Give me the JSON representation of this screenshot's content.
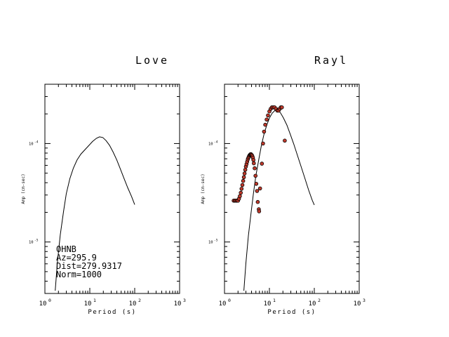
{
  "chart_data": [
    {
      "type": "line",
      "title": "Love",
      "xlabel": "Period (s)",
      "ylabel": "Amp (cm-sec)",
      "x_scale": "log",
      "y_scale": "log",
      "xlim": [
        1,
        1000
      ],
      "ylim": [
        3e-06,
        0.0004
      ],
      "x_ticks": [
        1,
        10,
        100,
        1000
      ],
      "x_tick_labels": [
        [
          "10",
          "0"
        ],
        [
          "10",
          "1"
        ],
        [
          "10",
          "2"
        ],
        [
          "10",
          "3"
        ]
      ],
      "y_ticks": [
        0.0001,
        1e-05
      ],
      "y_tick_labels": [
        [
          "10",
          "-4"
        ],
        [
          "10",
          "-5"
        ]
      ],
      "grid": false,
      "annotation": [
        "OHNB",
        "Az=295.9",
        "Dist=279.9317",
        "Norm=1000"
      ],
      "series": [
        {
          "kind": "line",
          "x": [
            1.7,
            1.9,
            2.2,
            2.6,
            3.0,
            3.6,
            4.3,
            5.2,
            6.3,
            7.7,
            9.4,
            11.5,
            14.0,
            16.5,
            19.5,
            23.0,
            27.5,
            33.0,
            40.0,
            48.0,
            58.0,
            70.0,
            85.0,
            100.0
          ],
          "y": [
            3.2e-06,
            6.2e-06,
            1.18e-05,
            2.05e-05,
            3.1e-05,
            4.4e-05,
            5.6e-05,
            6.8e-05,
            7.8e-05,
            8.6e-05,
            9.5e-05,
            0.000105,
            0.000113,
            0.000117,
            0.000115,
            0.000107,
            9.6e-05,
            8.2e-05,
            6.8e-05,
            5.5e-05,
            4.4e-05,
            3.55e-05,
            2.9e-05,
            2.4e-05
          ]
        }
      ]
    },
    {
      "type": "scatter",
      "title": "Rayl",
      "xlabel": "Period (s)",
      "ylabel": "Amp (cm-sec)",
      "x_scale": "log",
      "y_scale": "log",
      "xlim": [
        1,
        1000
      ],
      "ylim": [
        3e-06,
        0.0004
      ],
      "x_ticks": [
        1,
        10,
        100,
        1000
      ],
      "x_tick_labels": [
        [
          "10",
          "0"
        ],
        [
          "10",
          "1"
        ],
        [
          "10",
          "2"
        ],
        [
          "10",
          "3"
        ]
      ],
      "y_ticks": [
        0.0001,
        1e-05
      ],
      "y_tick_labels": [
        [
          "10",
          "-4"
        ],
        [
          "10",
          "-5"
        ]
      ],
      "grid": false,
      "series": [
        {
          "kind": "line",
          "x": [
            2.7,
            3.0,
            3.4,
            3.9,
            4.4,
            5.0,
            5.8,
            6.6,
            7.6,
            8.8,
            10.0,
            11.5,
            13.2,
            15.0,
            17.5,
            20.5,
            24.5,
            29.0,
            35.0,
            42.0,
            51.0,
            62.0,
            75.0,
            90.0,
            100.0
          ],
          "y": [
            3.2e-06,
            6.1e-06,
            1.15e-05,
            1.96e-05,
            3.1e-05,
            4.7e-05,
            6.9e-05,
            9.5e-05,
            0.000125,
            0.000155,
            0.000181,
            0.000203,
            0.000216,
            0.000218,
            0.000206,
            0.000182,
            0.000154,
            0.000125,
            9.85e-05,
            7.6e-05,
            5.8e-05,
            4.4e-05,
            3.35e-05,
            2.65e-05,
            2.38e-05
          ]
        },
        {
          "kind": "points",
          "color": "#c0392b",
          "x": [
            1.6,
            1.7,
            1.8,
            1.9,
            2.0,
            2.1,
            2.2,
            2.3,
            2.4,
            2.5,
            2.6,
            2.7,
            2.8,
            2.9,
            3.0,
            3.1,
            3.2,
            3.3,
            3.4,
            3.5,
            3.6,
            3.7,
            3.8,
            3.9,
            4.0,
            4.1,
            4.2,
            4.3,
            4.4,
            4.5,
            4.7,
            4.9,
            5.1,
            5.3,
            5.5,
            5.8,
            5.9,
            6.2,
            6.8,
            7.2,
            7.6,
            8.1,
            8.7,
            9.3,
            10.0,
            10.7,
            11.4,
            12.2,
            13.0,
            14.0,
            15.0,
            16.0,
            17.0,
            18.0,
            19.0,
            22.0
          ],
          "y": [
            2.63e-05,
            2.63e-05,
            2.63e-05,
            2.63e-05,
            2.63e-05,
            2.75e-05,
            2.92e-05,
            3.16e-05,
            3.47e-05,
            3.79e-05,
            4.17e-05,
            4.55e-05,
            4.96e-05,
            5.41e-05,
            5.84e-05,
            6.17e-05,
            6.54e-05,
            6.9e-05,
            7.16e-05,
            7.37e-05,
            7.58e-05,
            7.68e-05,
            7.78e-05,
            7.78e-05,
            7.68e-05,
            7.58e-05,
            7.37e-05,
            7.16e-05,
            6.8e-05,
            6.3e-05,
            5.6e-05,
            4.7e-05,
            3.9e-05,
            3.3e-05,
            2.55e-05,
            2.15e-05,
            2.05e-05,
            3.5e-05,
            6.25e-05,
            0.0001,
            0.000132,
            0.000155,
            0.000175,
            0.000193,
            0.000212,
            0.000225,
            0.000233,
            0.000233,
            0.000233,
            0.000225,
            0.000216,
            0.000216,
            0.000225,
            0.000233,
            0.000233,
            0.000107
          ]
        }
      ]
    }
  ]
}
